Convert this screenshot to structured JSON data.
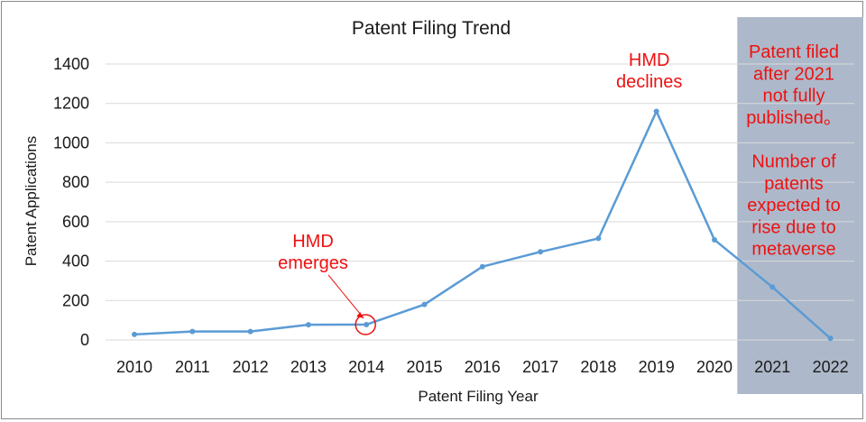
{
  "chart_data": {
    "type": "line",
    "title": "Patent Filing Trend",
    "xlabel": "Patent Filing Year",
    "ylabel": "Patent Applications",
    "x": [
      "2010",
      "2011",
      "2012",
      "2013",
      "2014",
      "2015",
      "2016",
      "2017",
      "2018",
      "2019",
      "2020",
      "2021",
      "2022"
    ],
    "series": [
      {
        "values": [
          28,
          43,
          43,
          77,
          78,
          180,
          372,
          447,
          515,
          1160,
          508,
          268,
          8
        ]
      }
    ],
    "ylim": [
      0,
      1400
    ],
    "yticks": [
      0,
      200,
      400,
      600,
      800,
      1000,
      1200,
      1400
    ],
    "grid": true,
    "colors": {
      "line": "#5b9bd5",
      "annotation": "#ee1111",
      "shade": "#adb9ca"
    },
    "shaded_region": {
      "from": "2021",
      "to": "2022"
    },
    "annotations": [
      {
        "lines": [
          "HMD",
          "emerges"
        ],
        "target_x": "2014"
      },
      {
        "lines": [
          "HMD",
          "declines"
        ],
        "target_x": "2019"
      },
      {
        "lines": [
          "Patent filed",
          "after 2021",
          "not fully",
          "published。",
          "",
          "Number of",
          "patents",
          "expected to",
          "rise due to",
          "metaverse"
        ]
      }
    ]
  }
}
